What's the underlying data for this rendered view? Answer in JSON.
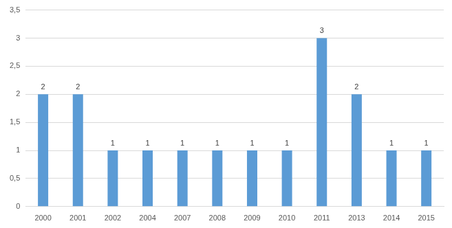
{
  "chart_data": {
    "type": "bar",
    "categories": [
      "2000",
      "2001",
      "2002",
      "2004",
      "2007",
      "2008",
      "2009",
      "2010",
      "2011",
      "2013",
      "2014",
      "2015"
    ],
    "values": [
      2,
      2,
      1,
      1,
      1,
      1,
      1,
      1,
      3,
      2,
      1,
      1
    ],
    "color": "#5b9bd5",
    "ylim": [
      0,
      3.5
    ],
    "yticks": [
      0,
      {
        "value": 0.5,
        "label": "0,5"
      },
      1,
      {
        "value": 1.5,
        "label": "1,5"
      },
      2,
      {
        "value": 2.5,
        "label": "2,5"
      },
      3,
      {
        "value": 3.5,
        "label": "3,5"
      }
    ],
    "grid": true,
    "data_labels": true
  }
}
